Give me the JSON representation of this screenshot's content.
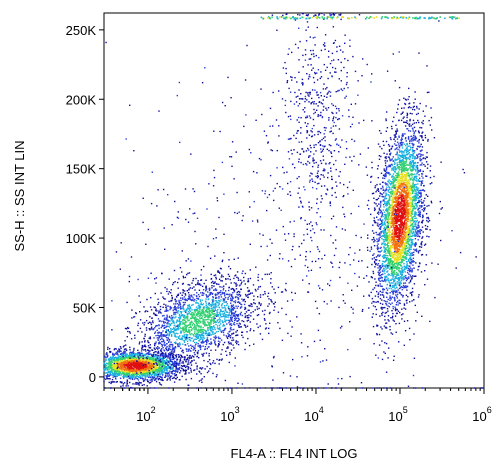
{
  "chart_data": {
    "type": "scatter",
    "style": "flow-cytometry-density-dot-plot",
    "title": "",
    "xlabel": "FL4-A :: FL4 INT LOG",
    "ylabel": "SS-H :: SS INT LIN",
    "x_scale": "log",
    "y_scale": "linear",
    "xlim": [
      30,
      1000000
    ],
    "ylim": [
      -8000,
      262144
    ],
    "x_ticks": [
      {
        "value": 100,
        "base": "10",
        "exp": "2"
      },
      {
        "value": 1000,
        "base": "10",
        "exp": "3"
      },
      {
        "value": 10000,
        "base": "10",
        "exp": "4"
      },
      {
        "value": 100000,
        "base": "10",
        "exp": "5"
      },
      {
        "value": 1000000,
        "base": "10",
        "exp": "6"
      }
    ],
    "y_ticks": [
      {
        "value": 0,
        "label": "0"
      },
      {
        "value": 50000,
        "label": "50K"
      },
      {
        "value": 100000,
        "label": "100K"
      },
      {
        "value": 150000,
        "label": "150K"
      },
      {
        "value": 200000,
        "label": "200K"
      },
      {
        "value": 250000,
        "label": "250K"
      }
    ],
    "grid": false,
    "legend": "none",
    "density_colors": [
      "#1010a0",
      "#2a3cd8",
      "#19b0e0",
      "#30d070",
      "#e8e020",
      "#f07010",
      "#e01010"
    ],
    "populations": [
      {
        "x_log10_center": 1.85,
        "y_center": 8000,
        "x_log10_spread": 0.28,
        "y_spread": 5500,
        "weight": 0.26,
        "density": "high"
      },
      {
        "x_log10_center": 2.6,
        "y_center": 40000,
        "x_log10_spread": 0.35,
        "y_spread": 14000,
        "weight": 0.22,
        "density": "medium"
      },
      {
        "x_log10_center": 5.0,
        "y_center": 115000,
        "x_log10_spread": 0.13,
        "y_spread": 33000,
        "weight": 0.4,
        "density": "high"
      },
      {
        "x_log10_center": 4.0,
        "y_center": 185000,
        "x_log10_spread": 0.22,
        "y_spread": 45000,
        "weight": 0.06,
        "density": "low"
      },
      {
        "x_log10_center": 3.6,
        "y_center": 80000,
        "x_log10_spread": 1.0,
        "y_spread": 70000,
        "weight": 0.06,
        "density": "low"
      }
    ]
  }
}
